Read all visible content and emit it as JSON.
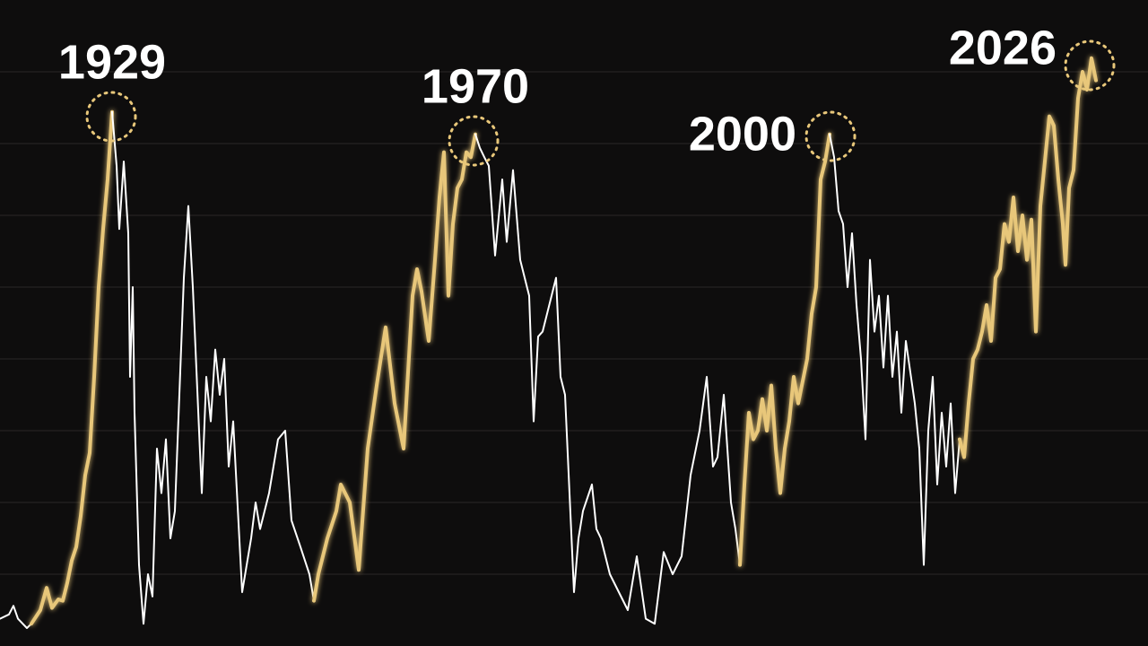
{
  "chart_data": {
    "type": "line",
    "xlim": [
      0,
      128
    ],
    "ylim": [
      0,
      90
    ],
    "yticks": [
      10,
      20,
      30,
      40,
      50,
      60,
      70,
      80
    ],
    "grid": true,
    "annotations": [
      "1929",
      "1970",
      "2000",
      "2026"
    ],
    "series": [
      {
        "color": "#ffffff",
        "x": [
          0,
          1,
          1.5,
          2,
          3,
          3.5
        ],
        "values": [
          3.8,
          4.4,
          5.6,
          3.8,
          2.5,
          3.1
        ]
      },
      {
        "color": "#e8c77a",
        "x": [
          3.5,
          4.5,
          5.2,
          5.8,
          6.5,
          7,
          7.5,
          8,
          8.5,
          9,
          9.5,
          10,
          10.5,
          11,
          11.5,
          12,
          12.5
        ],
        "values": [
          3.1,
          5,
          8.1,
          5.3,
          6.5,
          6.3,
          8.8,
          11.9,
          13.8,
          18.1,
          23.8,
          26.9,
          37.5,
          50,
          58.1,
          65,
          74.4
        ]
      },
      {
        "color": "#ffffff",
        "x": [
          12.5,
          13,
          13.3,
          13.8,
          14.3,
          14.5,
          14.8,
          15,
          15.5,
          16,
          16.5,
          17,
          17.5,
          18,
          18.5,
          19,
          19.5,
          20.5,
          21,
          21.5,
          22.5,
          23,
          23.5,
          24,
          24.5,
          25,
          25.5,
          26,
          27,
          28,
          28.5,
          29,
          30,
          31,
          31.8,
          32.5,
          33.5,
          34.5,
          35
        ],
        "values": [
          74.4,
          66.9,
          58.1,
          67.5,
          57.5,
          37.5,
          50,
          32.5,
          11.3,
          3.1,
          10,
          6.9,
          27.5,
          21.3,
          28.8,
          15,
          18.8,
          51.3,
          61.3,
          50,
          21.3,
          37.5,
          31.3,
          41.3,
          35,
          40,
          25,
          31.3,
          7.5,
          15,
          20,
          16.3,
          21.3,
          28.8,
          30,
          17.5,
          13.8,
          10,
          6.3
        ]
      },
      {
        "color": "#e8c77a",
        "x": [
          35,
          35.5,
          36.5,
          37.5,
          38,
          39,
          40,
          41,
          42,
          43,
          44,
          45,
          46,
          46.5,
          47,
          47.8,
          48.5,
          49,
          49.5,
          50,
          50.5,
          51,
          51.5,
          52,
          52.5,
          53
        ],
        "values": [
          6.3,
          10,
          15,
          18.8,
          22.5,
          20,
          10.6,
          27.5,
          36.3,
          44.4,
          33.8,
          27.5,
          48.8,
          52.5,
          49.4,
          42.5,
          53.8,
          62.5,
          68.8,
          48.8,
          58.8,
          63.8,
          65,
          68.8,
          68.1,
          71.3
        ]
      },
      {
        "color": "#ffffff",
        "x": [
          53,
          53.5,
          54,
          54.5,
          55.2,
          56,
          56.5,
          57.2,
          58,
          59,
          59.5,
          60,
          60.5,
          61,
          62,
          62.5,
          63,
          64,
          64.5,
          65,
          66,
          66.5,
          67,
          68,
          69,
          70,
          71,
          72,
          73,
          74,
          75,
          76,
          77,
          78,
          78.8,
          79.5,
          80,
          80.7,
          81.5,
          82,
          82.5
        ],
        "values": [
          71.3,
          69.4,
          68.1,
          66.9,
          54.4,
          65,
          56.3,
          66.3,
          53.8,
          48.8,
          31.3,
          43.1,
          43.8,
          46.3,
          51.3,
          37.5,
          35,
          7.5,
          15,
          18.8,
          22.5,
          16.3,
          15,
          10,
          7.5,
          5,
          12.5,
          3.8,
          3.1,
          13.1,
          10,
          12.5,
          23.8,
          30,
          37.5,
          25,
          26.3,
          35,
          20,
          16.3,
          11.3
        ]
      },
      {
        "color": "#e8c77a",
        "x": [
          82.5,
          83,
          83.5,
          84,
          84.5,
          85,
          85.5,
          86,
          86.5,
          87,
          87.5,
          88,
          88.5,
          89,
          90,
          90.5,
          91,
          91.5,
          92,
          92.5
        ],
        "values": [
          11.3,
          22.5,
          32.5,
          28.8,
          30,
          34.4,
          30,
          36.3,
          27.5,
          21.3,
          27.5,
          31.3,
          37.5,
          33.8,
          40,
          46.3,
          50,
          65,
          67.5,
          71.3
        ]
      },
      {
        "color": "#ffffff",
        "x": [
          92.5,
          93,
          93.5,
          94,
          94.5,
          95,
          95.5,
          96,
          96.5,
          97,
          97.5,
          98,
          98.5,
          99,
          99.5,
          100,
          100.5,
          101,
          102,
          102.5,
          103,
          103.5,
          104,
          104.5,
          105,
          105.5,
          106,
          106.5,
          107
        ],
        "values": [
          71.3,
          68.1,
          60.6,
          58.8,
          50,
          57.5,
          47.5,
          40,
          28.8,
          53.8,
          43.8,
          48.8,
          38.8,
          48.8,
          37.5,
          43.8,
          32.5,
          42.5,
          33.8,
          27.5,
          11.3,
          30,
          37.5,
          22.5,
          32.5,
          25,
          33.8,
          21.3,
          28.8
        ]
      },
      {
        "color": "#e8c77a",
        "x": [
          107,
          107.5,
          108,
          108.5,
          109,
          109.5,
          110,
          110.5,
          111,
          111.5,
          112,
          112.5,
          113,
          113.5,
          114,
          114.5,
          115,
          115.5,
          116,
          116.5,
          117,
          117.5,
          118,
          118.5,
          118.8,
          119.2,
          119.7,
          120.2,
          120.7,
          121.2,
          121.7,
          122.2
        ],
        "values": [
          28.8,
          26.3,
          33.8,
          40,
          41.3,
          43.8,
          47.5,
          42.5,
          51.3,
          52.5,
          58.8,
          56.3,
          62.5,
          55,
          60,
          53.8,
          59.4,
          43.8,
          61.3,
          67.5,
          73.8,
          72.5,
          65,
          58.8,
          53.1,
          63.8,
          66.3,
          76.3,
          80,
          77.5,
          81.9,
          78.8
        ]
      }
    ]
  }
}
